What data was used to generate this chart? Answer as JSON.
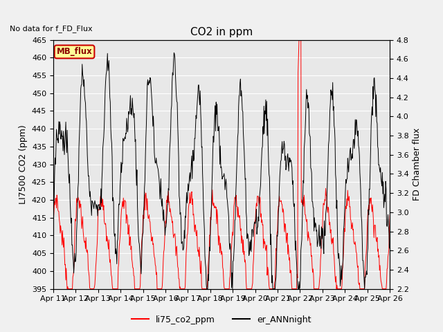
{
  "title": "CO2 in ppm",
  "top_left_text": "No data for f_FD_Flux",
  "box_text": "MB_flux",
  "ylabel_left": "LI7500 CO2 (ppm)",
  "ylabel_right": "FD Chamber flux",
  "ylim_left": [
    395,
    465
  ],
  "ylim_right": [
    2.2,
    4.8
  ],
  "xlabel_ticks": [
    "Apr 11",
    "Apr 12",
    "Apr 13",
    "Apr 14",
    "Apr 15",
    "Apr 16",
    "Apr 17",
    "Apr 18",
    "Apr 19",
    "Apr 20",
    "Apr 21",
    "Apr 22",
    "Apr 23",
    "Apr 24",
    "Apr 25",
    "Apr 26"
  ],
  "legend_labels": [
    "li75_co2_ppm",
    "er_ANNnight"
  ],
  "line_color_red": "#ff0000",
  "line_color_black": "#000000",
  "fig_facecolor": "#f0f0f0",
  "plot_facecolor": "#e8e8e8",
  "grid_color": "#ffffff",
  "box_facecolor": "#ffff99",
  "box_edgecolor": "#cc0000",
  "title_fontsize": 11,
  "label_fontsize": 9,
  "tick_fontsize": 8
}
